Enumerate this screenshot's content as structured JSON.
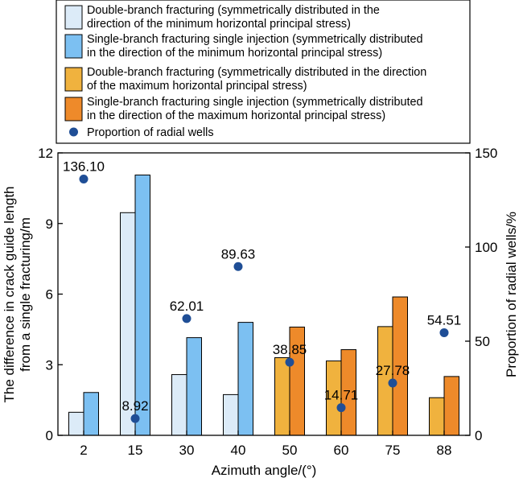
{
  "chart_data": {
    "type": "bar",
    "categories": [
      "2",
      "15",
      "30",
      "40",
      "50",
      "60",
      "75",
      "88"
    ],
    "xlabel": "Azimuth angle/(°)",
    "ylabel_left_line1": "The difference in crack guide length",
    "ylabel_left_line2": "from a single fracturing/m",
    "ylabel_right": "Proportion of radial wells/%",
    "ylim_left": [
      0,
      12
    ],
    "ylim_right": [
      0,
      150
    ],
    "yticks_left": [
      "0",
      "3",
      "6",
      "9",
      "12"
    ],
    "yticks_right": [
      "0",
      "50",
      "100",
      "150"
    ],
    "legend_position": "top",
    "legend": [
      {
        "line1": "Double-branch fracturing (symmetrically distributed in the",
        "line2": "direction of the minimum horizontal principal stress)",
        "color": "#dcebf8",
        "kind": "bar"
      },
      {
        "line1": "Single-branch fracturing single injection (symmetrically distributed",
        "line2": "in the direction of the minimum horizontal principal stress)",
        "color": "#7cc0f2",
        "kind": "bar"
      },
      {
        "line1": "Double-branch fracturing (symmetrically distributed in the direction",
        "line2": "of the maximum horizontal principal stress)",
        "color": "#f0b23e",
        "kind": "bar"
      },
      {
        "line1": "Single-branch fracturing single injection (symmetrically distributed",
        "line2": "in the direction of the maximum horizontal principal stress)",
        "color": "#ee8a2a",
        "kind": "bar"
      },
      {
        "line1": "Proportion of radial wells",
        "line2": "",
        "color": "#1f4e96",
        "kind": "dot"
      }
    ],
    "bars": [
      {
        "category": "2",
        "double": 0.98,
        "single": 1.82,
        "stress": "min"
      },
      {
        "category": "15",
        "double": 9.46,
        "single": 11.06,
        "stress": "min"
      },
      {
        "category": "30",
        "double": 2.58,
        "single": 4.15,
        "stress": "min"
      },
      {
        "category": "40",
        "double": 1.73,
        "single": 4.8,
        "stress": "min"
      },
      {
        "category": "50",
        "double": 3.3,
        "single": 4.6,
        "stress": "max"
      },
      {
        "category": "60",
        "double": 3.16,
        "single": 3.64,
        "stress": "max"
      },
      {
        "category": "75",
        "double": 4.62,
        "single": 5.88,
        "stress": "max"
      },
      {
        "category": "88",
        "double": 1.6,
        "single": 2.5,
        "stress": "max"
      }
    ],
    "proportion": {
      "name": "Proportion of radial wells",
      "values": [
        136.1,
        8.92,
        62.01,
        89.63,
        38.85,
        14.71,
        27.78,
        54.51
      ],
      "labels": [
        "136.10",
        "8.92",
        "62.01",
        "89.63",
        "38.85",
        "14.71",
        "27.78",
        "54.51"
      ]
    },
    "colors": {
      "min_double": "#dcebf8",
      "min_single": "#7cc0f2",
      "max_double": "#f0b23e",
      "max_single": "#ee8a2a",
      "dot": "#1f4e96"
    },
    "grid": false
  }
}
